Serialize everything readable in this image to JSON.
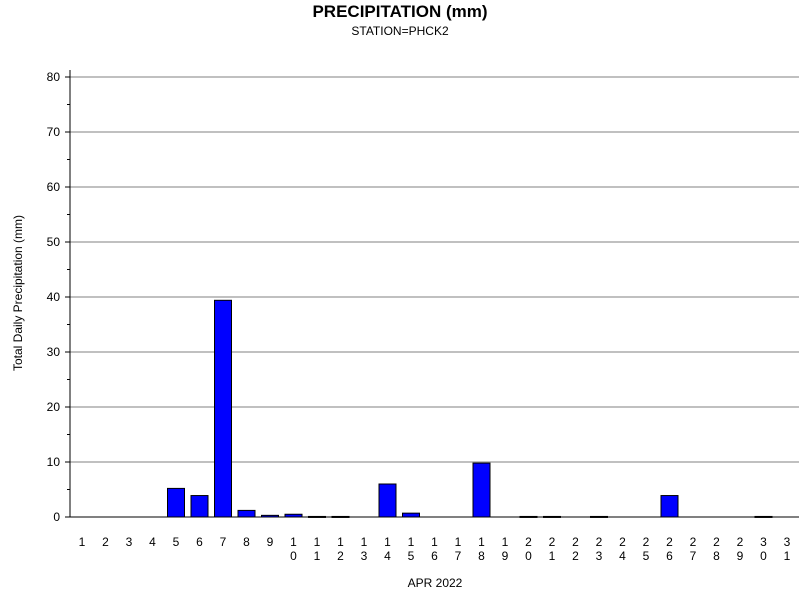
{
  "chart_data": {
    "type": "bar",
    "title": "PRECIPITATION (mm)",
    "subtitle": "STATION=PHCK2",
    "xlabel": "APR 2022",
    "ylabel": "Total Daily Precipitation (mm)",
    "ylim": [
      0,
      80
    ],
    "yticks": [
      0,
      10,
      20,
      30,
      40,
      50,
      60,
      70,
      80
    ],
    "grid": true,
    "bar_color": "#0000ff",
    "categories": [
      "1",
      "2",
      "3",
      "4",
      "5",
      "6",
      "7",
      "8",
      "9",
      "10",
      "11",
      "12",
      "13",
      "14",
      "15",
      "16",
      "17",
      "18",
      "19",
      "20",
      "21",
      "22",
      "23",
      "24",
      "25",
      "26",
      "27",
      "28",
      "29",
      "30",
      "31"
    ],
    "values": [
      0,
      0,
      0,
      0,
      5.2,
      3.9,
      39.4,
      1.2,
      0.3,
      0.5,
      0.1,
      0.1,
      0,
      6.0,
      0.7,
      0,
      0,
      9.8,
      0,
      0.1,
      0.1,
      0,
      0.1,
      0,
      0,
      3.9,
      0,
      0,
      0,
      0.1,
      0
    ]
  }
}
